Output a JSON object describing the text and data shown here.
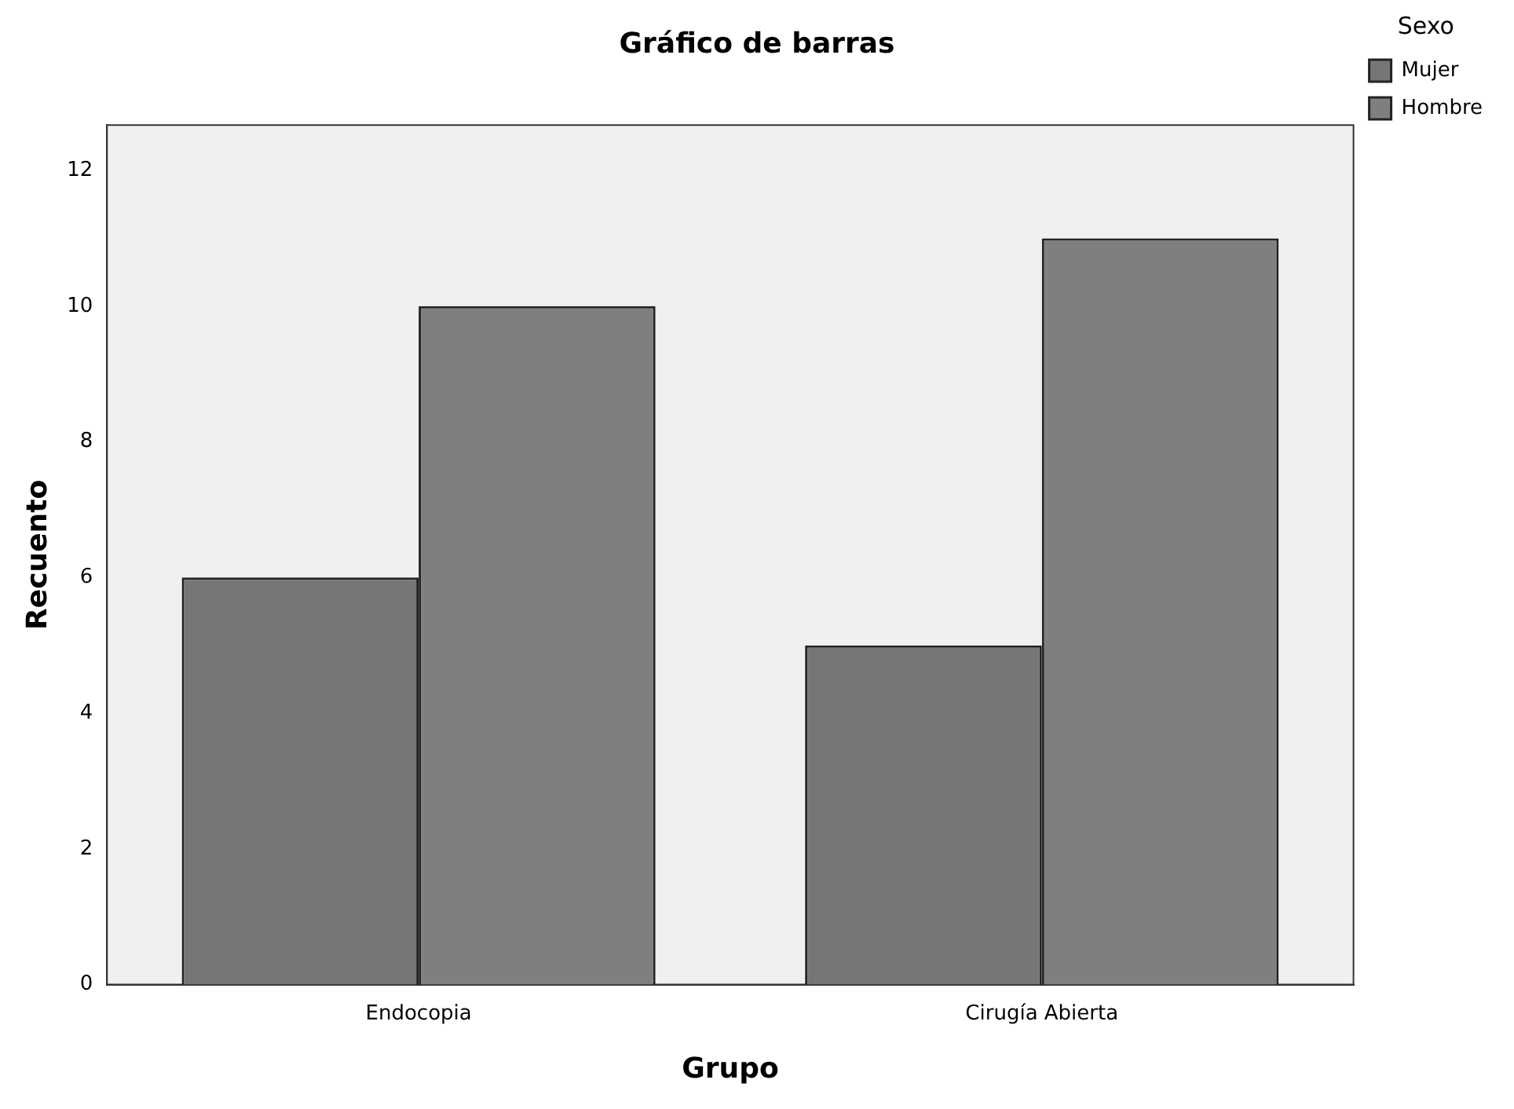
{
  "chart_data": {
    "type": "bar",
    "title": "Gráfico de barras",
    "xlabel": "Grupo",
    "ylabel": "Recuento",
    "legend_title": "Sexo",
    "categories": [
      "Endocopia",
      "Cirugía Abierta"
    ],
    "series": [
      {
        "name": "Mujer",
        "color": "#767676",
        "values": [
          6,
          5
        ]
      },
      {
        "name": "Hombre",
        "color": "#7f7f7f",
        "values": [
          10,
          11
        ]
      }
    ],
    "ylim": [
      0,
      12.67
    ],
    "yticks": [
      0,
      2,
      4,
      6,
      8,
      10,
      12
    ],
    "grid": false,
    "legend": "top right"
  }
}
